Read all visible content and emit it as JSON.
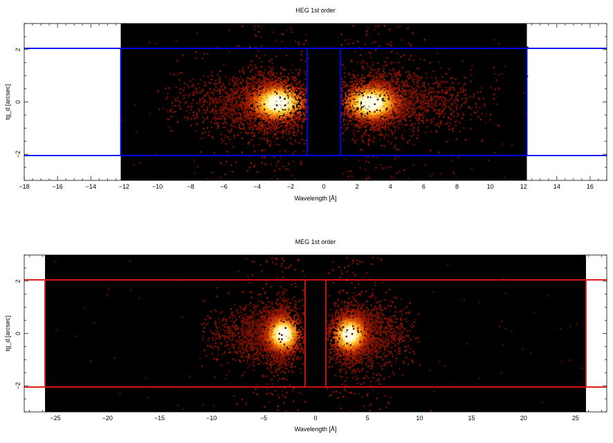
{
  "chart_data": [
    {
      "type": "heatmap",
      "title": "HEG 1st order",
      "xlabel": "Wavelength [Å]",
      "ylabel": "tg_d [arcsec]",
      "xlim": [
        -18,
        17
      ],
      "ylim": [
        -3,
        3
      ],
      "xticks": [
        -18,
        -16,
        -14,
        -12,
        -10,
        -8,
        -6,
        -4,
        -2,
        0,
        2,
        4,
        6,
        8,
        10,
        12,
        14,
        16
      ],
      "yticks": [
        -2,
        0,
        2
      ],
      "data_extent_x": [
        -12.2,
        12.2
      ],
      "colormap": "black-red-yellow-white",
      "box_color": "#0000ff",
      "selection_boxes": [
        {
          "x": [
            -12.2,
            -1.0
          ],
          "y": [
            -2.05,
            2.05
          ]
        },
        {
          "x": [
            1.0,
            12.2
          ],
          "y": [
            -2.05,
            2.05
          ]
        }
      ],
      "extraction_y": [
        -2.05,
        2.05
      ],
      "emission_peaks": [
        {
          "x_center": -2.8,
          "x_extent": [
            -9.0,
            -1.0
          ],
          "intensity_max": 1.0
        },
        {
          "x_center": 2.8,
          "x_extent": [
            1.0,
            9.5
          ],
          "intensity_max": 1.0
        }
      ]
    },
    {
      "type": "heatmap",
      "title": "MEG 1st order",
      "xlabel": "Wavelength [Å]",
      "ylabel": "tg_d [arcsec]",
      "xlim": [
        -28,
        28
      ],
      "ylim": [
        -3,
        3
      ],
      "xticks": [
        -25,
        -20,
        -15,
        -10,
        -5,
        0,
        5,
        10,
        15,
        20,
        25
      ],
      "yticks": [
        -2,
        0,
        2
      ],
      "data_extent_x": [
        -26,
        26
      ],
      "colormap": "black-red-yellow-white",
      "box_color": "#dd1111",
      "selection_boxes": [
        {
          "x": [
            -26,
            -1.0
          ],
          "y": [
            -2.05,
            2.05
          ]
        },
        {
          "x": [
            1.0,
            26
          ],
          "y": [
            -2.05,
            2.05
          ]
        }
      ],
      "extraction_y": [
        -2.05,
        2.05
      ],
      "emission_peaks": [
        {
          "x_center": -3.2,
          "x_extent": [
            -10.0,
            -1.0
          ],
          "intensity_max": 1.0
        },
        {
          "x_center": 3.2,
          "x_extent": [
            1.0,
            9.0
          ],
          "intensity_max": 1.0
        }
      ]
    }
  ]
}
